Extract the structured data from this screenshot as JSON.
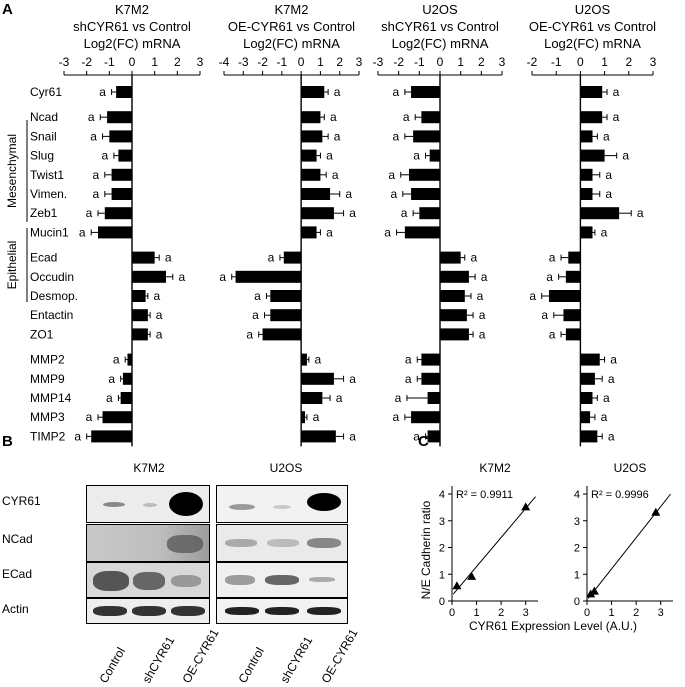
{
  "panel_letters": {
    "a": "A",
    "b": "B",
    "c": "C"
  },
  "sig_letter": "a",
  "panel_a": {
    "genes": [
      "Cyr61",
      "Ncad",
      "Snail",
      "Slug",
      "Twist1",
      "Vimen.",
      "Zeb1",
      "Mucin1",
      "Ecad",
      "Occudin",
      "Desmop.",
      "Entactin",
      "ZO1",
      "MMP2",
      "MMP9",
      "MMP14",
      "MMP3",
      "TIMP2"
    ],
    "group_labels": {
      "mesenchymal": "Mesenchymal",
      "epithelial": "Epithelial"
    }
  },
  "panel_b": {
    "cells": [
      "K7M2",
      "U2OS"
    ],
    "rows": [
      "CYR61",
      "NCad",
      "ECad",
      "Actin"
    ],
    "lanes": [
      "Control",
      "shCYR61",
      "OE-CYR61"
    ]
  },
  "panel_c": {
    "xlabel": "CYR61 Expression Level (A.U.)",
    "ylabel": "N/E Cadherin ratio"
  },
  "chart_data": [
    {
      "type": "bar",
      "orientation": "horizontal",
      "title_line1": "K7M2",
      "title_line2": "shCYR61 vs Control",
      "xlabel": "Log2(FC) mRNA",
      "xlim": [
        -3,
        3
      ],
      "xticks": [
        "-3",
        "-2",
        "-1",
        "0",
        "1",
        "2",
        "3"
      ],
      "values": [
        -0.7,
        -1.1,
        -1.0,
        -0.6,
        -0.9,
        -0.9,
        -1.2,
        -1.5,
        1.0,
        1.5,
        0.6,
        0.7,
        0.7,
        -0.2,
        -0.4,
        -0.5,
        -1.3,
        -1.8
      ],
      "errors": [
        0.2,
        0.3,
        0.3,
        0.2,
        0.3,
        0.3,
        0.3,
        0.3,
        0.2,
        0.3,
        0.1,
        0.1,
        0.1,
        0.1,
        0.1,
        0.1,
        0.2,
        0.2
      ]
    },
    {
      "type": "bar",
      "orientation": "horizontal",
      "title_line1": "K7M2",
      "title_line2": "OE-CYR61 vs Control",
      "xlabel": "Log2(FC) mRNA",
      "xlim": [
        -4,
        3
      ],
      "xticks": [
        "-4",
        "-3",
        "-2",
        "-1",
        "0",
        "1",
        "2",
        "3"
      ],
      "values": [
        1.2,
        1.0,
        1.1,
        0.8,
        1.0,
        1.5,
        1.7,
        0.8,
        -0.9,
        -3.4,
        -1.6,
        -1.6,
        -2.0,
        0.3,
        1.7,
        1.1,
        0.2,
        1.8
      ],
      "errors": [
        0.2,
        0.2,
        0.3,
        0.2,
        0.3,
        0.5,
        0.5,
        0.2,
        0.2,
        0.2,
        0.2,
        0.3,
        0.2,
        0.1,
        0.5,
        0.4,
        0.1,
        0.4
      ]
    },
    {
      "type": "bar",
      "orientation": "horizontal",
      "title_line1": "U2OS",
      "title_line2": "shCYR61 vs Control",
      "xlabel": "Log2(FC) mRNA",
      "xlim": [
        -3,
        3
      ],
      "xticks": [
        "-3",
        "-2",
        "-1",
        "0",
        "1",
        "2",
        "3"
      ],
      "values": [
        -1.4,
        -0.9,
        -1.3,
        -0.5,
        -1.5,
        -1.4,
        -1.0,
        -1.7,
        1.0,
        1.4,
        1.2,
        1.3,
        1.4,
        -0.9,
        -0.9,
        -0.6,
        -1.4,
        -0.6
      ],
      "errors": [
        0.3,
        0.3,
        0.4,
        0.2,
        0.4,
        0.4,
        0.3,
        0.4,
        0.2,
        0.3,
        0.3,
        0.3,
        0.2,
        0.2,
        0.2,
        1.0,
        0.3,
        0.1
      ]
    },
    {
      "type": "bar",
      "orientation": "horizontal",
      "title_line1": "U2OS",
      "title_line2": "OE-CYR61 vs Control",
      "xlabel": "Log2(FC) mRNA",
      "xlim": [
        -2,
        3
      ],
      "xticks": [
        "-2",
        "-1",
        "0",
        "1",
        "2",
        "3"
      ],
      "values": [
        0.9,
        0.9,
        0.5,
        1.0,
        0.5,
        0.5,
        1.6,
        0.5,
        -0.5,
        -0.6,
        -1.3,
        -0.7,
        -0.6,
        0.8,
        0.6,
        0.5,
        0.4,
        0.7
      ],
      "errors": [
        0.2,
        0.2,
        0.2,
        0.5,
        0.3,
        0.3,
        0.5,
        0.1,
        0.3,
        0.3,
        0.3,
        0.4,
        0.2,
        0.2,
        0.3,
        0.2,
        0.2,
        0.2
      ]
    },
    {
      "type": "scatter",
      "title": "K7M2",
      "annotation": "R² = 0.9911",
      "x": [
        0.2,
        0.8,
        3.0
      ],
      "y": [
        0.55,
        0.9,
        3.5
      ],
      "xlim": [
        0,
        3.5
      ],
      "ylim": [
        0,
        4.3
      ],
      "xticks": [
        "0",
        "1",
        "2",
        "3"
      ],
      "yticks": [
        "0",
        "1",
        "2",
        "3",
        "4"
      ],
      "trendline": true
    },
    {
      "type": "scatter",
      "title": "U2OS",
      "annotation": "R² = 0.9996",
      "x": [
        0.15,
        0.3,
        2.8
      ],
      "y": [
        0.25,
        0.35,
        3.3
      ],
      "xlim": [
        0,
        3.5
      ],
      "ylim": [
        0,
        4.3
      ],
      "xticks": [
        "0",
        "1",
        "2",
        "3"
      ],
      "yticks": [
        "0",
        "1",
        "2",
        "3",
        "4"
      ],
      "trendline": true
    }
  ]
}
